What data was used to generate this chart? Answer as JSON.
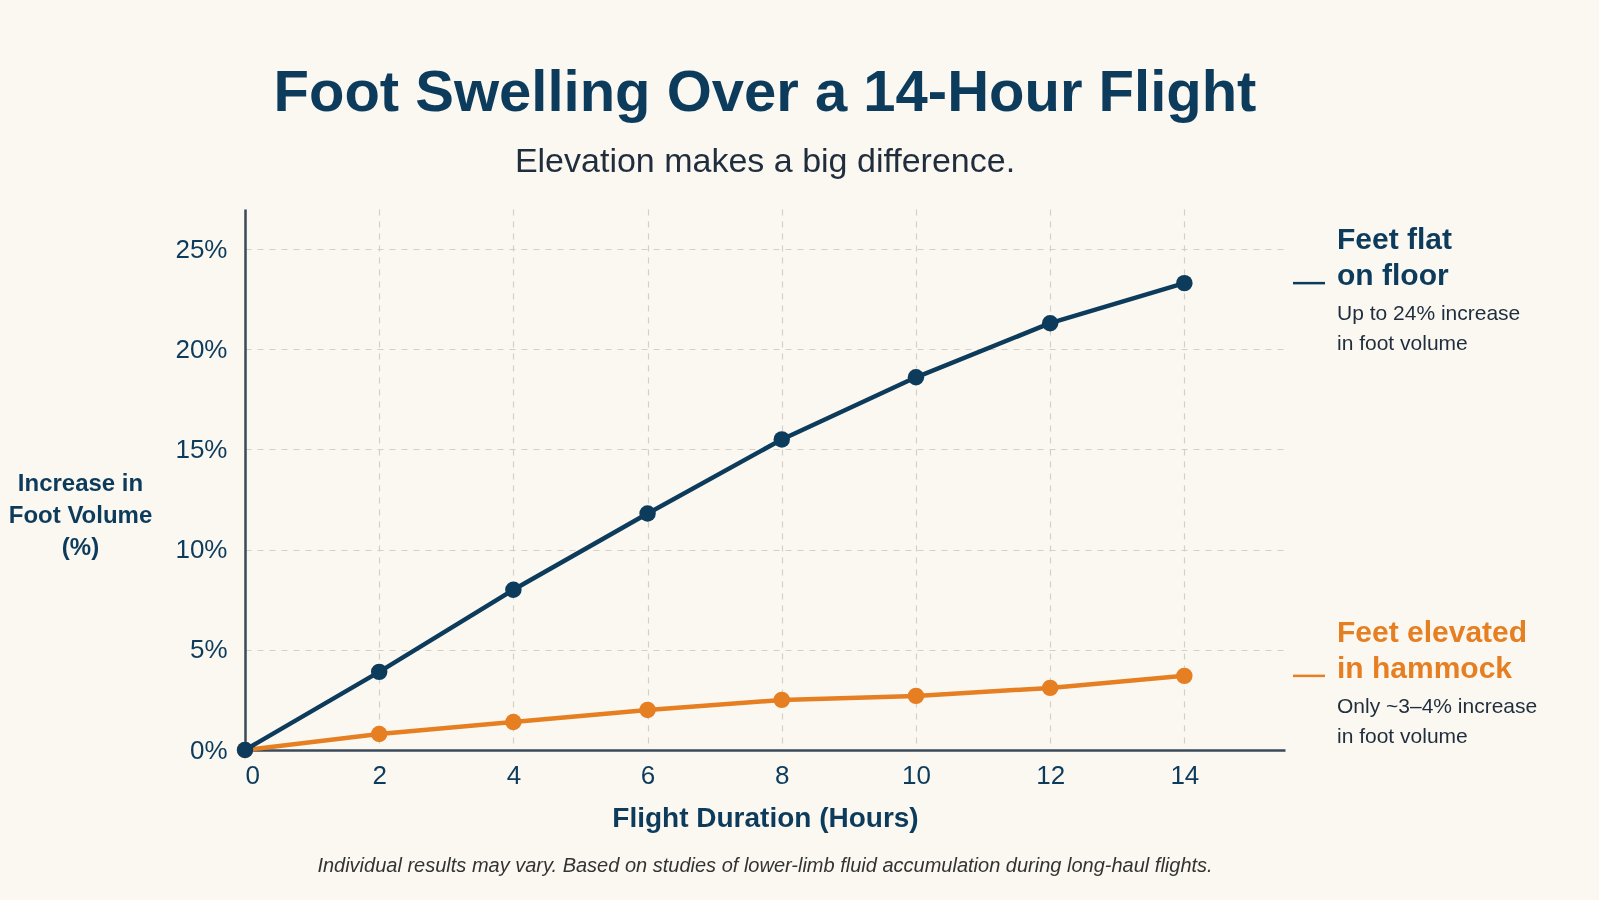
{
  "chart_data": {
    "type": "line",
    "title": "Foot Swelling Over a 14-Hour Flight",
    "subtitle": "Elevation makes a big difference.",
    "xlabel": "Flight Duration (Hours)",
    "ylabel": "Increase in Foot Volume (%)",
    "x": [
      0,
      2,
      4,
      6,
      8,
      10,
      12,
      14
    ],
    "series": [
      {
        "name": "Feet flat on floor",
        "color": "#0d3b5c",
        "values": [
          0,
          3.9,
          8.0,
          11.8,
          15.5,
          18.6,
          21.3,
          23.3
        ]
      },
      {
        "name": "Feet elevated in hammock",
        "color": "#e67e22",
        "values": [
          0,
          0.8,
          1.4,
          2.0,
          2.5,
          2.7,
          3.1,
          3.7
        ]
      }
    ],
    "xlim": [
      0,
      15.5
    ],
    "ylim": [
      0,
      27
    ],
    "xticks": [
      0,
      2,
      4,
      6,
      8,
      10,
      12,
      14
    ],
    "yticks": [
      {
        "value": 0,
        "label": "0%"
      },
      {
        "value": 5,
        "label": "5%"
      },
      {
        "value": 10,
        "label": "10%"
      },
      {
        "value": 15,
        "label": "15%"
      },
      {
        "value": 20,
        "label": "20%"
      },
      {
        "value": 25,
        "label": "25%"
      }
    ],
    "grid": true,
    "legend": "right",
    "marker": "circle",
    "line_style": "solid",
    "annotations": [
      "Up to 24% increase in foot volume",
      "Only ~3–4% increase in foot volume",
      "Individual results may vary. Based on studies of lower-limb fluid accumulation during long-haul flights."
    ]
  }
}
